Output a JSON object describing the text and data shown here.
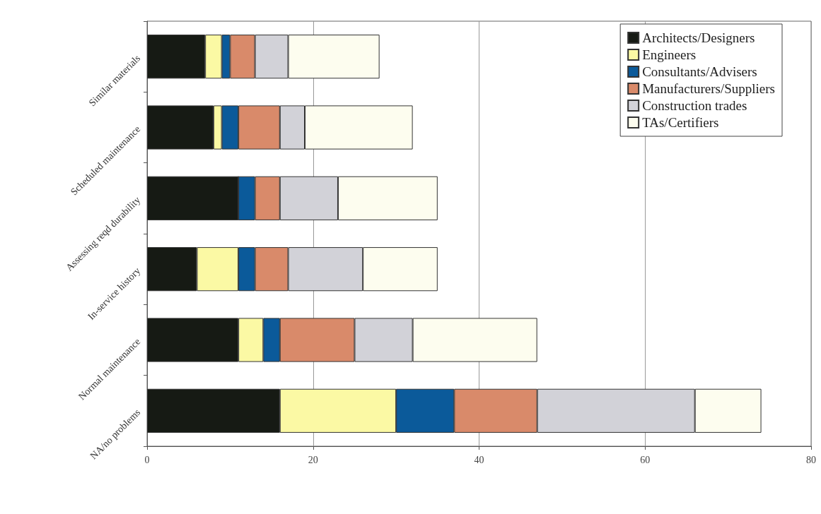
{
  "chart_data": {
    "type": "bar",
    "orientation": "horizontal",
    "stacked": true,
    "categories": [
      "Similar materials",
      "Scheduled maintenance",
      "Assessing reqd durability",
      "In-service history",
      "Normal maintenance",
      "NA/no problems"
    ],
    "series": [
      {
        "name": "Architects/Designers",
        "color": "#161a14",
        "values": [
          7,
          8,
          11,
          6,
          11,
          16
        ]
      },
      {
        "name": "Engineers",
        "color": "#fbf9a4",
        "values": [
          2,
          1,
          0,
          5,
          3,
          14
        ]
      },
      {
        "name": "Consultants/Advisers",
        "color": "#0b5a9a",
        "values": [
          1,
          2,
          2,
          2,
          2,
          7
        ]
      },
      {
        "name": "Manufacturers/Suppliers",
        "color": "#d98a6a",
        "values": [
          3,
          5,
          3,
          4,
          9,
          10
        ]
      },
      {
        "name": "Construction trades",
        "color": "#d2d2d8",
        "values": [
          4,
          3,
          7,
          9,
          7,
          19
        ]
      },
      {
        "name": "TAs/Certifiers",
        "color": "#fdfdef",
        "values": [
          11,
          13,
          12,
          9,
          15,
          8
        ]
      }
    ],
    "xlim": [
      0,
      80
    ],
    "xticks": [
      0,
      20,
      40,
      60,
      80
    ],
    "grid": "x",
    "legend": "top right"
  }
}
